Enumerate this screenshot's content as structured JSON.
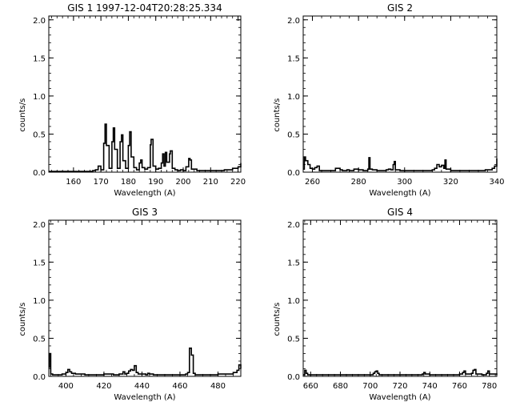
{
  "figure": {
    "background": "#ffffff",
    "ink": "#000000"
  },
  "chart_data": [
    {
      "type": "line",
      "title": "GIS 1 1997-12-04T20:28:25.334",
      "xlabel": "Wavelength (A)",
      "ylabel": "counts/s",
      "xlim": [
        151,
        221
      ],
      "ylim": [
        0,
        2.05
      ],
      "xticks": [
        160,
        170,
        180,
        190,
        200,
        210,
        220
      ],
      "yticks": [
        0.0,
        0.5,
        1.0,
        1.5,
        2.0
      ],
      "ytick_labels": [
        "0.0",
        "0.5",
        "1.0",
        "1.5",
        "2.0"
      ],
      "grid": false,
      "x": [
        151,
        155,
        160,
        165,
        167,
        168,
        169,
        170,
        171,
        171.5,
        172,
        173,
        174,
        174.5,
        175,
        176,
        177,
        177.5,
        178,
        179,
        180,
        180.5,
        181,
        182,
        183,
        184,
        184.5,
        185,
        186,
        187,
        188,
        188.3,
        189,
        190,
        191,
        192,
        192.5,
        193,
        193.5,
        194,
        195,
        195.3,
        196,
        197,
        198,
        199,
        200,
        201,
        202,
        202.5,
        203,
        205,
        210,
        215,
        218,
        220,
        221
      ],
      "y": [
        0.01,
        0.01,
        0.01,
        0.01,
        0.02,
        0.03,
        0.08,
        0.03,
        0.38,
        0.63,
        0.35,
        0.05,
        0.4,
        0.58,
        0.3,
        0.05,
        0.4,
        0.49,
        0.15,
        0.05,
        0.35,
        0.53,
        0.2,
        0.06,
        0.03,
        0.12,
        0.16,
        0.06,
        0.04,
        0.06,
        0.36,
        0.43,
        0.08,
        0.04,
        0.05,
        0.12,
        0.24,
        0.08,
        0.26,
        0.13,
        0.24,
        0.28,
        0.05,
        0.03,
        0.02,
        0.03,
        0.02,
        0.07,
        0.18,
        0.16,
        0.04,
        0.02,
        0.02,
        0.03,
        0.05,
        0.07,
        0.12
      ]
    },
    {
      "type": "line",
      "title": "GIS 2",
      "xlabel": "Wavelength (A)",
      "ylabel": "counts/s",
      "xlim": [
        256,
        340
      ],
      "ylim": [
        0,
        2.05
      ],
      "xticks": [
        260,
        280,
        300,
        320,
        340
      ],
      "yticks": [
        0.0,
        0.5,
        1.0,
        1.5,
        2.0
      ],
      "ytick_labels": [
        "0.0",
        "0.5",
        "1.0",
        "1.5",
        "2.0"
      ],
      "grid": false,
      "x": [
        256,
        256.5,
        257,
        258,
        259,
        260,
        261,
        262,
        263,
        265,
        268,
        270,
        272,
        273,
        275,
        276,
        278,
        280,
        282,
        284,
        284.5,
        285,
        286,
        288,
        290,
        292,
        293,
        294,
        295,
        295.5,
        296,
        298,
        300,
        305,
        310,
        312,
        313,
        314,
        315,
        316,
        317,
        317.5,
        318,
        320,
        325,
        330,
        335,
        338,
        339,
        340
      ],
      "y": [
        0.04,
        0.2,
        0.15,
        0.1,
        0.05,
        0.04,
        0.06,
        0.08,
        0.02,
        0.02,
        0.02,
        0.05,
        0.03,
        0.02,
        0.03,
        0.02,
        0.04,
        0.03,
        0.02,
        0.04,
        0.19,
        0.04,
        0.03,
        0.02,
        0.02,
        0.03,
        0.04,
        0.03,
        0.1,
        0.14,
        0.03,
        0.02,
        0.02,
        0.02,
        0.02,
        0.03,
        0.05,
        0.1,
        0.07,
        0.09,
        0.05,
        0.16,
        0.04,
        0.02,
        0.02,
        0.02,
        0.03,
        0.05,
        0.08,
        0.18
      ]
    },
    {
      "type": "line",
      "title": "GIS 3",
      "xlabel": "Wavelength (A)",
      "ylabel": "counts/s",
      "xlim": [
        391,
        492
      ],
      "ylim": [
        0,
        2.05
      ],
      "xticks": [
        400,
        420,
        440,
        460,
        480
      ],
      "yticks": [
        0.0,
        0.5,
        1.0,
        1.5,
        2.0
      ],
      "ytick_labels": [
        "0.0",
        "0.5",
        "1.0",
        "1.5",
        "2.0"
      ],
      "grid": false,
      "x": [
        391,
        391.3,
        392,
        393,
        395,
        398,
        400,
        401,
        402,
        403,
        405,
        410,
        415,
        420,
        425,
        428,
        430,
        431,
        432,
        433,
        434,
        435,
        436,
        437,
        438,
        440,
        442,
        443,
        444,
        446,
        450,
        455,
        460,
        463,
        464,
        465,
        466,
        467,
        468,
        470,
        475,
        480,
        485,
        488,
        490,
        491,
        492
      ],
      "y": [
        0.12,
        0.3,
        0.03,
        0.02,
        0.02,
        0.03,
        0.05,
        0.09,
        0.06,
        0.04,
        0.03,
        0.02,
        0.02,
        0.03,
        0.02,
        0.03,
        0.06,
        0.03,
        0.04,
        0.07,
        0.09,
        0.08,
        0.14,
        0.05,
        0.03,
        0.03,
        0.02,
        0.04,
        0.03,
        0.02,
        0.02,
        0.02,
        0.02,
        0.03,
        0.05,
        0.37,
        0.28,
        0.04,
        0.02,
        0.02,
        0.02,
        0.03,
        0.03,
        0.05,
        0.08,
        0.15,
        0.1
      ]
    },
    {
      "type": "line",
      "title": "GIS 4",
      "xlabel": "Wavelength (A)",
      "ylabel": "counts/s",
      "xlim": [
        655,
        785
      ],
      "ylim": [
        0,
        2.05
      ],
      "xticks": [
        660,
        680,
        700,
        720,
        740,
        760,
        780
      ],
      "yticks": [
        0.0,
        0.5,
        1.0,
        1.5,
        2.0
      ],
      "ytick_labels": [
        "0.0",
        "0.5",
        "1.0",
        "1.5",
        "2.0"
      ],
      "grid": false,
      "x": [
        655,
        656,
        657,
        658,
        660,
        665,
        670,
        680,
        690,
        700,
        702,
        703,
        704,
        705,
        706,
        710,
        720,
        730,
        735,
        736,
        737,
        740,
        745,
        750,
        755,
        760,
        762,
        763,
        764,
        768,
        769,
        770,
        771,
        775,
        778,
        779,
        780,
        785
      ],
      "y": [
        0.02,
        0.08,
        0.04,
        0.02,
        0.02,
        0.02,
        0.02,
        0.02,
        0.02,
        0.02,
        0.04,
        0.06,
        0.07,
        0.04,
        0.02,
        0.02,
        0.02,
        0.02,
        0.03,
        0.05,
        0.03,
        0.02,
        0.02,
        0.02,
        0.02,
        0.03,
        0.05,
        0.07,
        0.03,
        0.04,
        0.08,
        0.09,
        0.03,
        0.02,
        0.04,
        0.07,
        0.03,
        0.02
      ]
    }
  ]
}
